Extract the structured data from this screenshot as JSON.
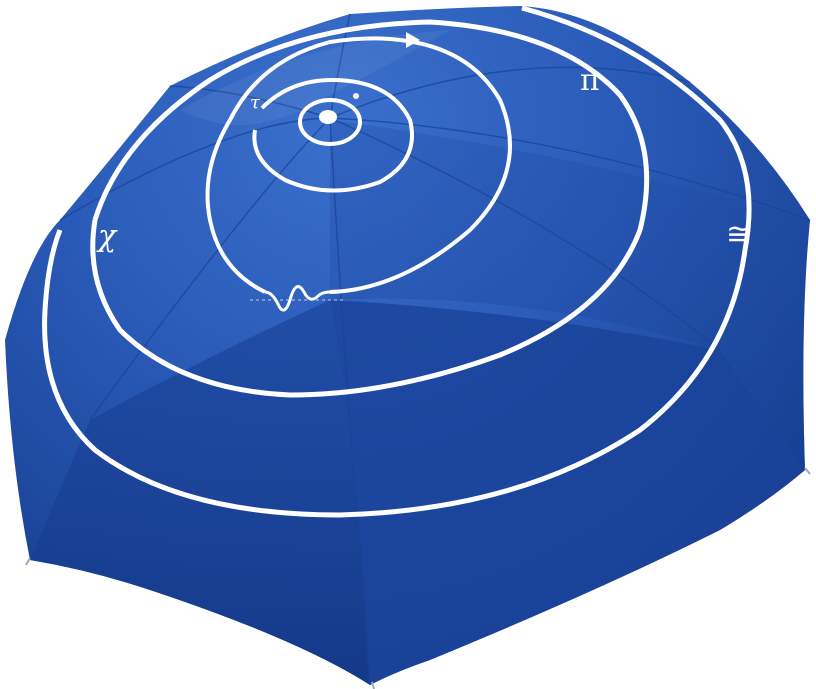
{
  "image": {
    "subject": "umbrella-photo"
  },
  "colors": {
    "canopy_light": "#2f63c0",
    "canopy_mid": "#2654b0",
    "canopy_dark": "#183f92",
    "canopy_shadow": "#123585",
    "print": "#ffffff",
    "background": "#ffffff"
  },
  "symbols": {
    "pi": "π",
    "tau": "τ",
    "chi": "χ",
    "approx_equal": "≅",
    "wave": "wave-packet",
    "arrow": "direction-arrow"
  }
}
